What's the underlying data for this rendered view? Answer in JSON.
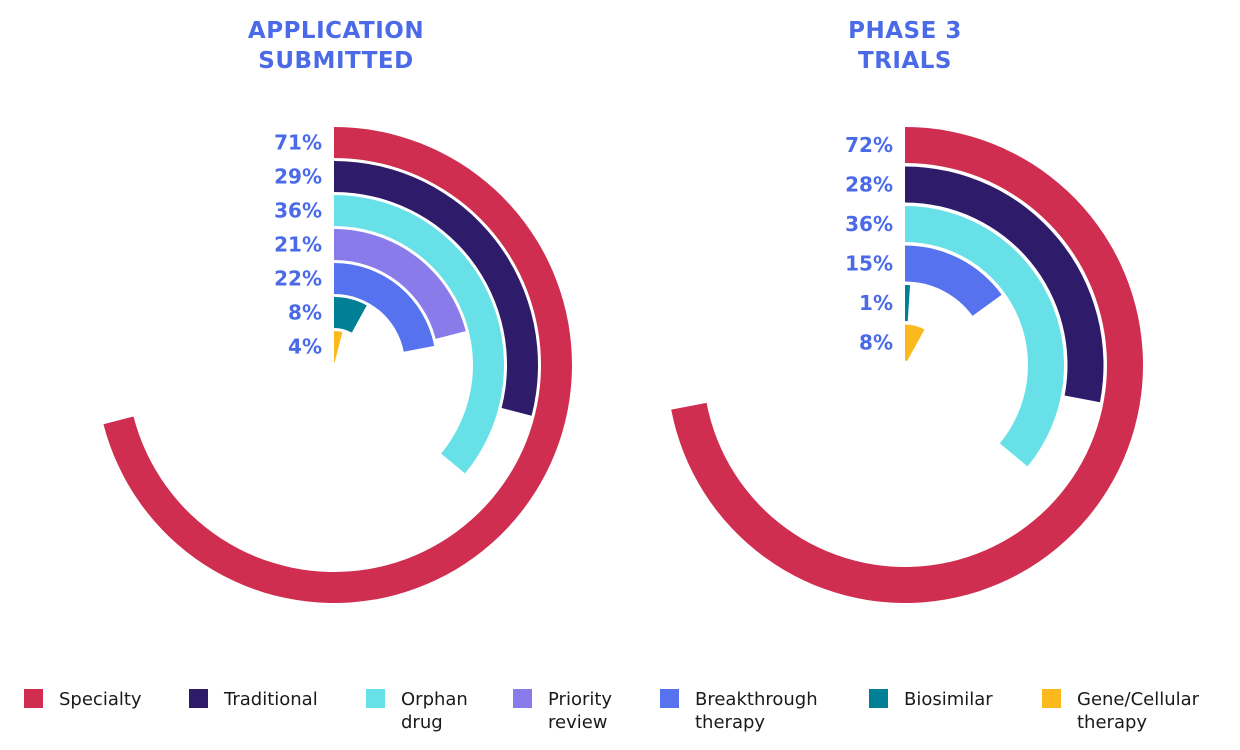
{
  "chart_data": [
    {
      "type": "radial-bar",
      "title": "APPLICATION\nSUBMITTED",
      "categories": [
        "Specialty",
        "Traditional",
        "Orphan drug",
        "Priority review",
        "Breakthrough therapy",
        "Biosimilar",
        "Gene/Cellular therapy"
      ],
      "values": [
        71,
        29,
        36,
        21,
        22,
        8,
        4
      ],
      "labels": [
        "71%",
        "29%",
        "36%",
        "21%",
        "22%",
        "8%",
        "4%"
      ],
      "unit": "%",
      "range": [
        0,
        100
      ]
    },
    {
      "type": "radial-bar",
      "title": "PHASE 3\nTRIALS",
      "categories": [
        "Specialty",
        "Traditional",
        "Orphan drug",
        "Breakthrough therapy",
        "Biosimilar",
        "Gene/Cellular therapy"
      ],
      "values": [
        72,
        28,
        36,
        15,
        1,
        8
      ],
      "labels": [
        "72%",
        "28%",
        "36%",
        "15%",
        "1%",
        "8%"
      ],
      "unit": "%",
      "range": [
        0,
        100
      ]
    }
  ],
  "legend": [
    {
      "label": "Specialty",
      "color": "#cf2e50"
    },
    {
      "label": "Traditional",
      "color": "#2e1c6b"
    },
    {
      "label": "Orphan\ndrug",
      "color": "#68e0e8"
    },
    {
      "label": "Priority\nreview",
      "color": "#8a7bea"
    },
    {
      "label": "Breakthrough\ntherapy",
      "color": "#5672ee"
    },
    {
      "label": "Biosimilar",
      "color": "#007f96"
    },
    {
      "label": "Gene/Cellular\ntherapy",
      "color": "#fbb91e"
    }
  ],
  "colors": {
    "Specialty": "#cf2e50",
    "Traditional": "#2e1c6b",
    "Orphan drug": "#68e0e8",
    "Priority review": "#8a7bea",
    "Breakthrough therapy": "#5672ee",
    "Biosimilar": "#007f96",
    "Gene/Cellular therapy": "#fbb91e",
    "title": "#4a6ae8"
  }
}
